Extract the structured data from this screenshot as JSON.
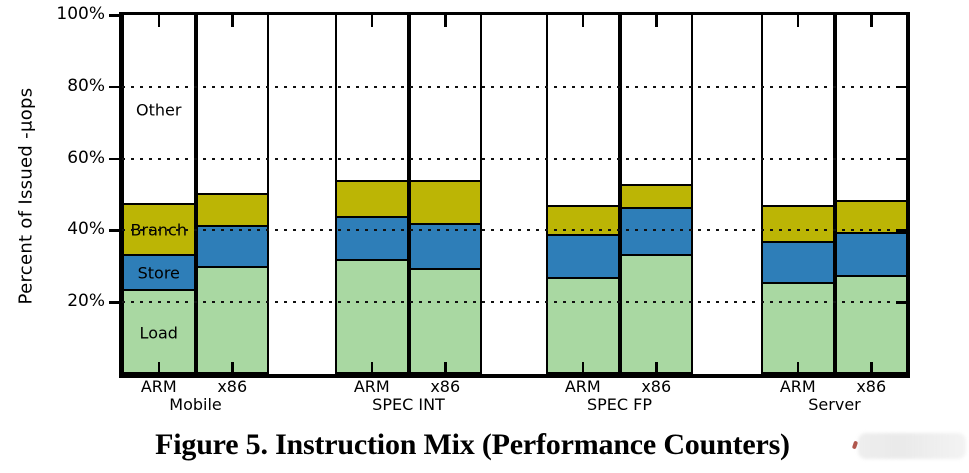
{
  "figure": {
    "caption": "Figure 5. Instruction Mix (Performance Counters)"
  },
  "watermark": {
    "text_legible": false
  },
  "chart_data": {
    "type": "bar",
    "variant": "stacked-percent",
    "title": "",
    "xlabel": "",
    "ylabel": "Percent of Issued -µops",
    "ylim": [
      0,
      100
    ],
    "grid": "dotted horizontal",
    "legend_position": "inline labels inside first bar",
    "yticks": [
      {
        "value": 20,
        "label": "20%"
      },
      {
        "value": 40,
        "label": "40%"
      },
      {
        "value": 60,
        "label": "60%"
      },
      {
        "value": 80,
        "label": "80%"
      },
      {
        "value": 100,
        "label": "100%"
      }
    ],
    "gridline_values": [
      20,
      40,
      60,
      80
    ],
    "segment_order": [
      "Load",
      "Store",
      "Branch",
      "Other"
    ],
    "colors": {
      "Load": "#a9d8a2",
      "Store": "#2e7eb8",
      "Branch": "#bcb505",
      "Other": "#ffffff"
    },
    "inline_labeled_bar": "Mobile ARM",
    "groups": [
      {
        "label": "Mobile",
        "bars": [
          {
            "label": "ARM",
            "values": {
              "Load": 23,
              "Store": 10,
              "Branch": 14,
              "Other": 53
            }
          },
          {
            "label": "x86",
            "values": {
              "Load": 29.5,
              "Store": 11.5,
              "Branch": 9,
              "Other": 50
            }
          }
        ]
      },
      {
        "label": "SPEC INT",
        "bars": [
          {
            "label": "ARM",
            "values": {
              "Load": 31.5,
              "Store": 12,
              "Branch": 10,
              "Other": 46.5
            }
          },
          {
            "label": "x86",
            "values": {
              "Load": 29,
              "Store": 12.5,
              "Branch": 12,
              "Other": 46.5
            }
          }
        ]
      },
      {
        "label": "SPEC FP",
        "bars": [
          {
            "label": "ARM",
            "values": {
              "Load": 26.5,
              "Store": 12,
              "Branch": 8,
              "Other": 53.5
            }
          },
          {
            "label": "x86",
            "values": {
              "Load": 33,
              "Store": 13,
              "Branch": 6.5,
              "Other": 47.5
            }
          }
        ]
      },
      {
        "label": "Server",
        "bars": [
          {
            "label": "ARM",
            "values": {
              "Load": 25,
              "Store": 11.5,
              "Branch": 10,
              "Other": 53.5
            }
          },
          {
            "label": "x86",
            "values": {
              "Load": 27,
              "Store": 12,
              "Branch": 9,
              "Other": 52
            }
          }
        ]
      }
    ]
  }
}
